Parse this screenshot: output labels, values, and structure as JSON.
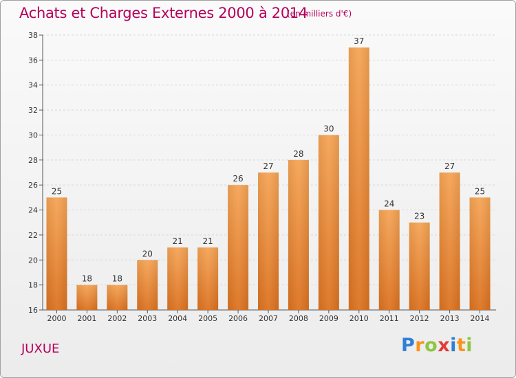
{
  "title": "Achats et Charges Externes 2000 à 2014",
  "subtitle": "(en milliers d'€)",
  "commune": "JUXUE",
  "logo": {
    "letters": [
      "P",
      "r",
      "o",
      "x",
      "i",
      "t",
      "i"
    ],
    "colors": [
      "#2e7fd6",
      "#f7941d",
      "#8dc63f",
      "#e23b3b",
      "#2e7fd6",
      "#f7941d",
      "#8dc63f"
    ]
  },
  "colors": {
    "title": "#b5005a",
    "bar_top": "#f5a455",
    "bar_bottom": "#dc7220",
    "axis": "#555555",
    "grid": "#d8d8d8"
  },
  "chart_data": {
    "type": "bar",
    "categories": [
      "2000",
      "2001",
      "2002",
      "2003",
      "2004",
      "2005",
      "2006",
      "2007",
      "2008",
      "2009",
      "2010",
      "2011",
      "2012",
      "2013",
      "2014"
    ],
    "values": [
      25,
      18,
      18,
      20,
      21,
      21,
      26,
      27,
      28,
      30,
      37,
      24,
      23,
      27,
      25
    ],
    "ylim": [
      16,
      38
    ],
    "yticks": [
      16,
      18,
      20,
      22,
      24,
      26,
      28,
      30,
      32,
      34,
      36,
      38
    ],
    "grid": true,
    "xlabel": "",
    "ylabel": ""
  }
}
